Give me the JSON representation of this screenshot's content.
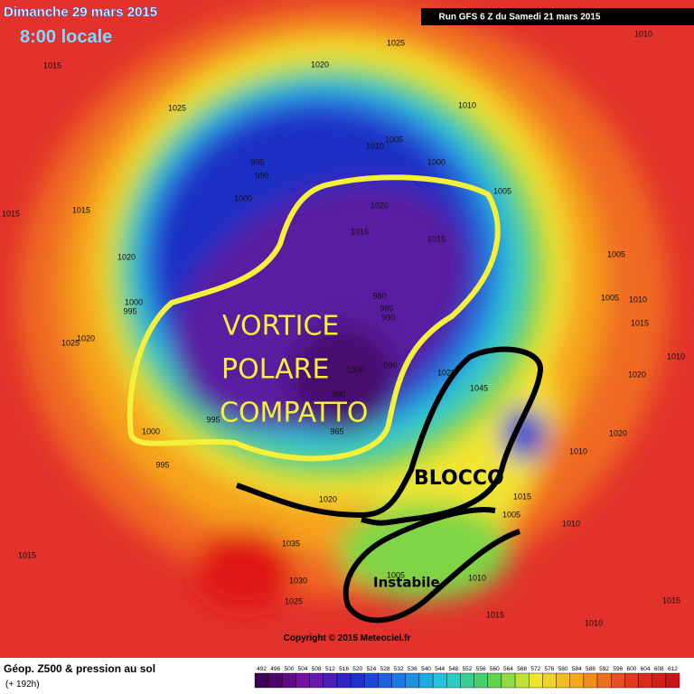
{
  "header": {
    "date": "Dimanche 29 mars 2015",
    "time": "8:00 locale",
    "run": "Run GFS 6 Z du Samedi 21 mars 2015"
  },
  "annotations": {
    "vortex": [
      "VORTICE",
      "POLARE",
      "COMPATTO"
    ],
    "block": "BLOCCO",
    "unstable": "Instabile"
  },
  "copyright": "Copyright © 2015 Meteociel.fr",
  "footer": {
    "title": "Géop. Z500 & pression au sol",
    "lead": "(+ 192h)"
  },
  "scale": [
    492,
    496,
    500,
    504,
    508,
    512,
    516,
    520,
    524,
    528,
    532,
    536,
    540,
    544,
    548,
    552,
    556,
    560,
    564,
    568,
    572,
    576,
    580,
    584,
    588,
    592,
    596,
    600,
    604,
    608,
    612
  ],
  "pressure_labels": [
    "1025",
    "1010",
    "1015",
    "1020",
    "1025",
    "1010",
    "995",
    "990",
    "1010",
    "1005",
    "1000",
    "1005",
    "1000",
    "1015",
    "1015",
    "1020",
    "1015",
    "1015",
    "1020",
    "1005",
    "980",
    "985",
    "990",
    "1005",
    "1010",
    "1015",
    "1000",
    "995",
    "1025",
    "1020",
    "1010",
    "1000",
    "990",
    "1020",
    "1025",
    "1045",
    "990",
    "995",
    "965",
    "1000",
    "995",
    "1020",
    "1010",
    "1015",
    "1005",
    "1020",
    "1010",
    "1015",
    "1035",
    "1030",
    "1025",
    "1015",
    "1010",
    "1005",
    "1010",
    "1015"
  ]
}
